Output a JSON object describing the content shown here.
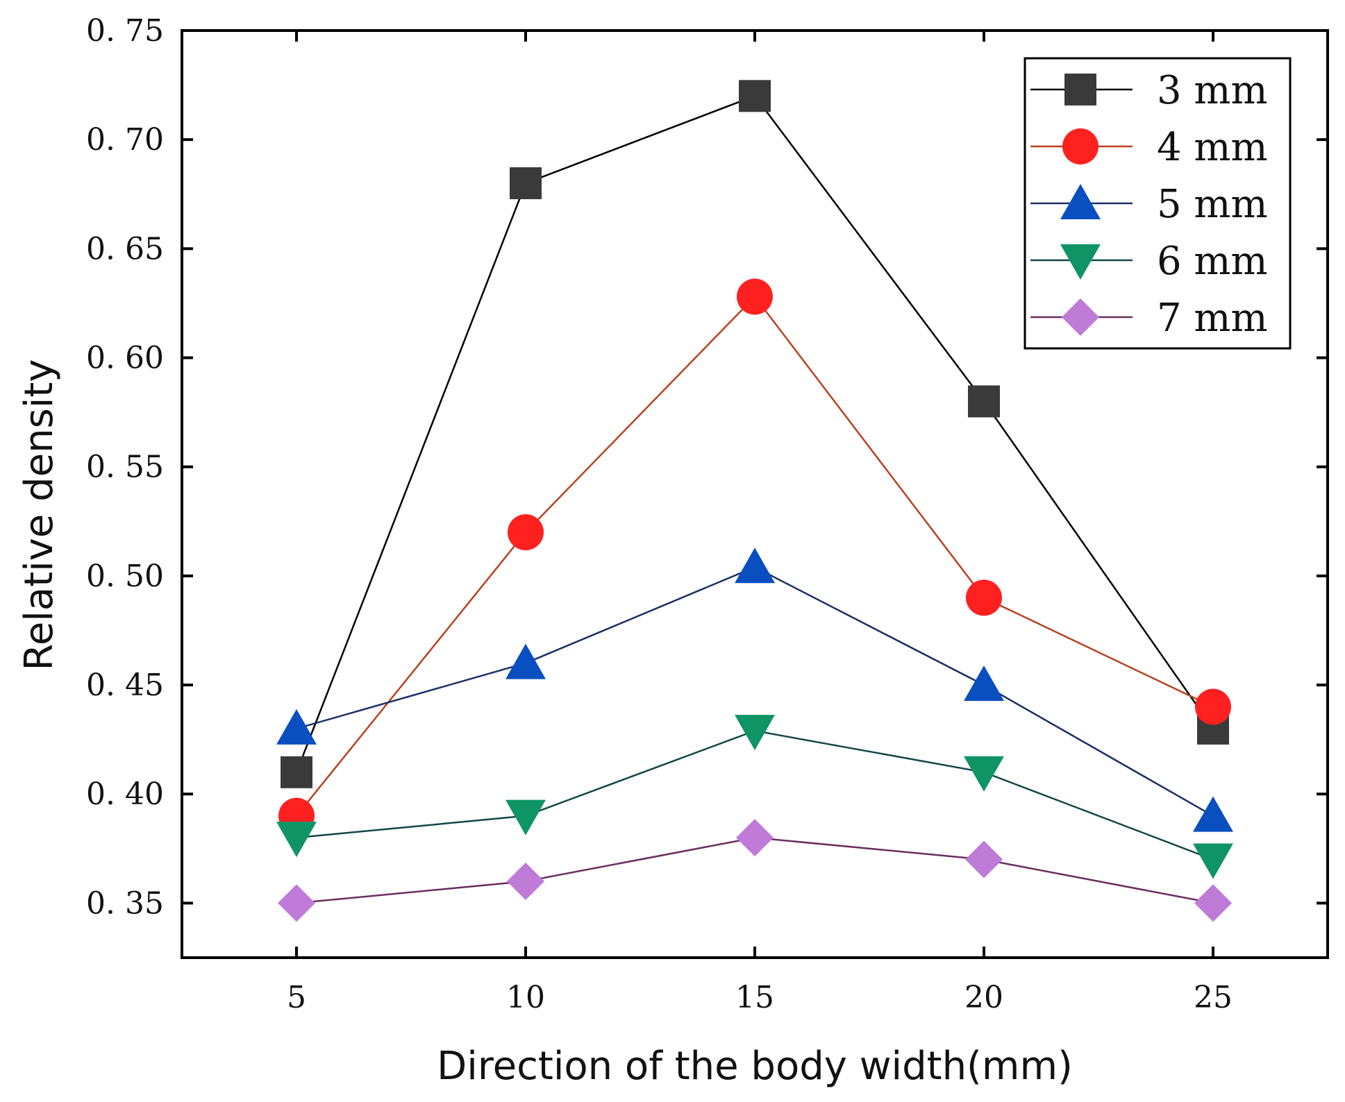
{
  "chart_data": {
    "type": "line",
    "title": "",
    "xlabel": "Direction of the body width(mm)",
    "ylabel": "Relative density",
    "x": [
      5,
      10,
      15,
      20,
      25
    ],
    "xlim": [
      2.5,
      27.5
    ],
    "ylim": [
      0.325,
      0.75
    ],
    "xticks": [
      5,
      10,
      15,
      20,
      25
    ],
    "xtick_labels": [
      "5",
      "10",
      "15",
      "20",
      "25"
    ],
    "yticks": [
      0.35,
      0.4,
      0.45,
      0.5,
      0.55,
      0.6,
      0.65,
      0.7,
      0.75
    ],
    "ytick_labels": [
      "0. 35",
      "0. 40",
      "0. 45",
      "0. 50",
      "0. 55",
      "0. 60",
      "0. 65",
      "0. 70",
      "0. 75"
    ],
    "grid": false,
    "legend_position": "top-right",
    "series": [
      {
        "name": "3 mm",
        "values": [
          0.41,
          0.68,
          0.72,
          0.58,
          0.43
        ],
        "color": "#000000",
        "marker_color": "#3a3a3a",
        "marker": "square"
      },
      {
        "name": "4 mm",
        "values": [
          0.39,
          0.52,
          0.628,
          0.49,
          0.44
        ],
        "color": "#b8421e",
        "marker_color": "#ff2020",
        "marker": "circle"
      },
      {
        "name": "5 mm",
        "values": [
          0.43,
          0.46,
          0.504,
          0.45,
          0.39
        ],
        "color": "#1a2f66",
        "marker_color": "#0a4fc0",
        "marker": "triangle-up"
      },
      {
        "name": "6 mm",
        "values": [
          0.38,
          0.39,
          0.429,
          0.41,
          0.37
        ],
        "color": "#14474a",
        "marker_color": "#0f9466",
        "marker": "triangle-down"
      },
      {
        "name": "7 mm",
        "values": [
          0.35,
          0.36,
          0.38,
          0.37,
          0.35
        ],
        "color": "#6a2d5e",
        "marker_color": "#c07ad8",
        "marker": "diamond"
      }
    ]
  }
}
